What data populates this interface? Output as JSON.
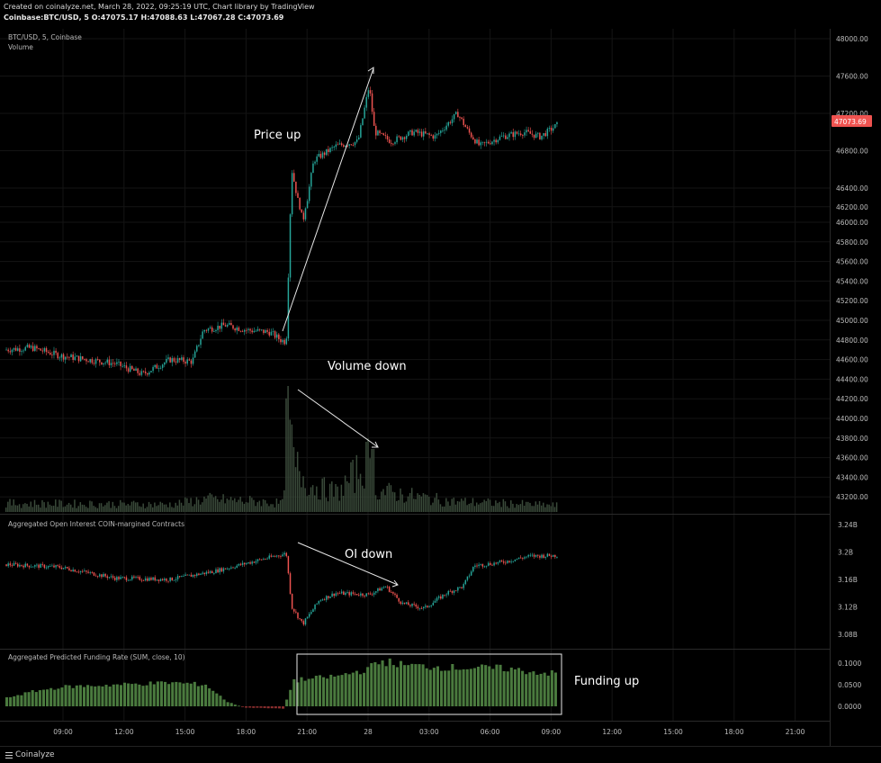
{
  "header": {
    "line1": "Created on coinalyze.net, March 28, 2022, 09:25:19 UTC, Chart library by TradingView",
    "line2": "Coinbase:BTC/USD, 5 O:47075.17 H:47088.63 L:47067.28 C:47073.69"
  },
  "panes": {
    "price_title": "BTC/USD, 5, Coinbase",
    "volume_title": "Volume",
    "oi_title": "Aggregated Open Interest COIN-margined Contracts",
    "funding_title": "Aggregated Predicted Funding Rate (SUM, close, 10)"
  },
  "annotations": {
    "price_up": "Price up",
    "volume_down": "Volume down",
    "oi_down": "OI down",
    "funding_up": "Funding up"
  },
  "footer": {
    "brand": "Coinalyze"
  },
  "colors": {
    "up": "#26a69a",
    "down": "#ef5350",
    "volume": "#3a4a3a",
    "funding": "#4a7a3e",
    "funding_neg": "#8a2e2e",
    "price_badge": "#ef5350",
    "grid": "#141414",
    "separator": "#2a2a2a"
  },
  "chart_data": [
    {
      "type": "candlestick",
      "name": "price",
      "x_ticks": [
        "09:00",
        "12:00",
        "15:00",
        "18:00",
        "21:00",
        "28",
        "03:00",
        "06:00",
        "09:00",
        "12:00",
        "15:00",
        "18:00",
        "21:00"
      ],
      "y_ticks": [
        "48000.00",
        "47600.00",
        "47200.00",
        "46800.00",
        "46400.00",
        "46200.00",
        "46000.00",
        "45800.00",
        "45600.00",
        "45400.00",
        "45200.00",
        "45000.00",
        "44800.00",
        "44600.00",
        "44400.00",
        "44200.00",
        "44000.00",
        "43800.00",
        "43600.00",
        "43400.00",
        "43200.00"
      ],
      "last_price": "47073.69",
      "path": [
        [
          0,
          44700
        ],
        [
          0.05,
          44720
        ],
        [
          0.1,
          44640
        ],
        [
          0.15,
          44600
        ],
        [
          0.2,
          44560
        ],
        [
          0.25,
          44450
        ],
        [
          0.3,
          44600
        ],
        [
          0.34,
          44580
        ],
        [
          0.36,
          44900
        ],
        [
          0.4,
          44950
        ],
        [
          0.44,
          44900
        ],
        [
          0.48,
          44880
        ],
        [
          0.5,
          44800
        ],
        [
          0.51,
          44780
        ],
        [
          0.52,
          46600
        ],
        [
          0.54,
          46000
        ],
        [
          0.56,
          46700
        ],
        [
          0.6,
          46850
        ],
        [
          0.64,
          46900
        ],
        [
          0.66,
          47500
        ],
        [
          0.67,
          47000
        ],
        [
          0.7,
          46900
        ],
        [
          0.74,
          47000
        ],
        [
          0.78,
          46950
        ],
        [
          0.82,
          47200
        ],
        [
          0.84,
          47000
        ],
        [
          0.86,
          46850
        ],
        [
          0.9,
          46950
        ],
        [
          0.94,
          47000
        ],
        [
          0.97,
          46950
        ],
        [
          1,
          47074
        ]
      ]
    },
    {
      "type": "bar",
      "name": "volume",
      "profile": [
        [
          0,
          0.08
        ],
        [
          0.3,
          0.07
        ],
        [
          0.36,
          0.12
        ],
        [
          0.45,
          0.1
        ],
        [
          0.5,
          0.08
        ],
        [
          0.51,
          1.0
        ],
        [
          0.52,
          0.45
        ],
        [
          0.55,
          0.25
        ],
        [
          0.6,
          0.18
        ],
        [
          0.66,
          0.5
        ],
        [
          0.67,
          0.2
        ],
        [
          0.8,
          0.1
        ],
        [
          1,
          0.06
        ]
      ]
    },
    {
      "type": "candlestick",
      "name": "open_interest",
      "y_ticks": [
        "3.24B",
        "3.2B",
        "3.16B",
        "3.12B",
        "3.08B"
      ],
      "path": [
        [
          0,
          3.182
        ],
        [
          0.1,
          3.178
        ],
        [
          0.2,
          3.162
        ],
        [
          0.3,
          3.16
        ],
        [
          0.38,
          3.172
        ],
        [
          0.45,
          3.186
        ],
        [
          0.5,
          3.196
        ],
        [
          0.51,
          3.198
        ],
        [
          0.52,
          3.12
        ],
        [
          0.54,
          3.095
        ],
        [
          0.57,
          3.13
        ],
        [
          0.6,
          3.14
        ],
        [
          0.66,
          3.138
        ],
        [
          0.69,
          3.15
        ],
        [
          0.72,
          3.125
        ],
        [
          0.76,
          3.118
        ],
        [
          0.8,
          3.14
        ],
        [
          0.83,
          3.15
        ],
        [
          0.85,
          3.18
        ],
        [
          0.9,
          3.185
        ],
        [
          0.95,
          3.194
        ],
        [
          1,
          3.195
        ]
      ]
    },
    {
      "type": "bar",
      "name": "funding_rate",
      "y_ticks": [
        "0.1000",
        "0.0500",
        "0.0000"
      ],
      "profile": [
        [
          0,
          0.02
        ],
        [
          0.05,
          0.035
        ],
        [
          0.1,
          0.045
        ],
        [
          0.2,
          0.05
        ],
        [
          0.3,
          0.055
        ],
        [
          0.36,
          0.05
        ],
        [
          0.4,
          0.01
        ],
        [
          0.43,
          -0.003
        ],
        [
          0.5,
          -0.005
        ],
        [
          0.52,
          0.06
        ],
        [
          0.6,
          0.07
        ],
        [
          0.65,
          0.085
        ],
        [
          0.68,
          0.105
        ],
        [
          0.72,
          0.095
        ],
        [
          0.8,
          0.09
        ],
        [
          0.9,
          0.088
        ],
        [
          0.95,
          0.08
        ],
        [
          1,
          0.075
        ]
      ]
    }
  ]
}
